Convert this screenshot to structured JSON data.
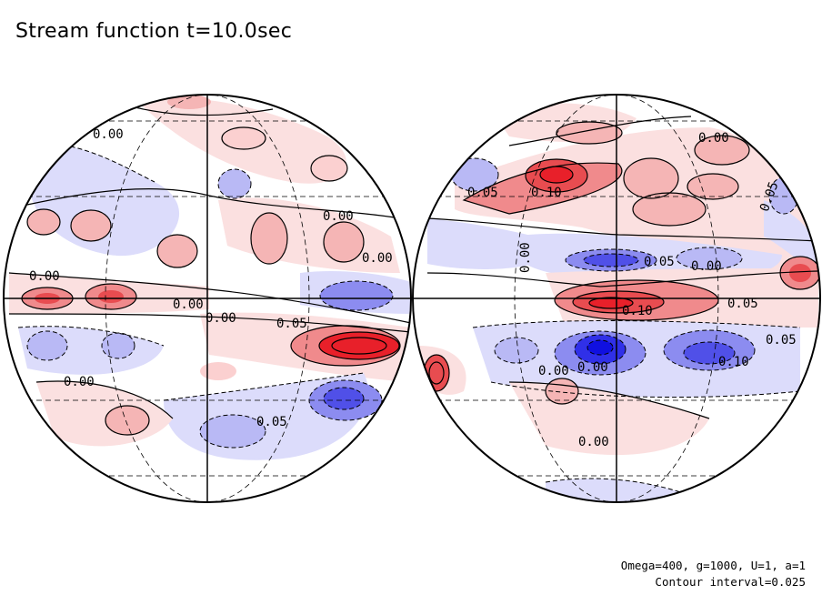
{
  "title": "Stream function t=10.0sec",
  "footer": {
    "params": "Omega=400, g=1000, U=1, a=1",
    "contour_interval": "Contour interval=0.025"
  },
  "colors": {
    "positive_strong": "#e8202a",
    "positive_mid": "#f08a8c",
    "positive_weak": "#fbe0e0",
    "negative_strong": "#1010e0",
    "negative_mid": "#8c8cf0",
    "negative_weak": "#dcdcfb",
    "line": "#000000"
  },
  "left_hemisphere": {
    "contour_labels": [
      "0.00",
      "0.00",
      "0.00",
      "0.00",
      "0.00",
      "0.00",
      "0.05",
      "0.00",
      "0.05"
    ]
  },
  "right_hemisphere": {
    "contour_labels": [
      "0.05",
      "0.10",
      "0.00",
      "0.05",
      "0.00",
      "0.05",
      "0.00",
      "0.05",
      "0.10",
      "0.00",
      "0.05",
      "0.00",
      "0.00",
      "0.10"
    ]
  }
}
